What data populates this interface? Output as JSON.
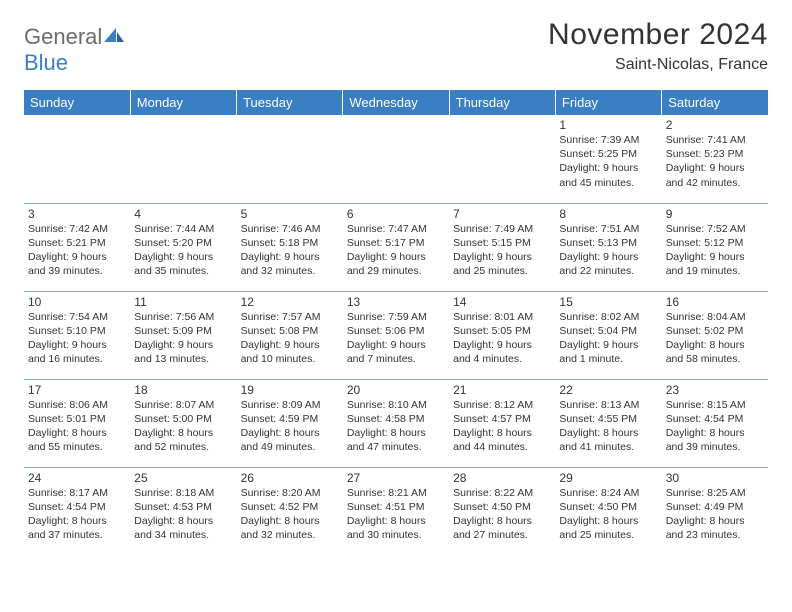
{
  "logo": {
    "word1": "General",
    "word2": "Blue"
  },
  "title": "November 2024",
  "location": "Saint-Nicolas, France",
  "colors": {
    "header_bg": "#3a7fc4",
    "header_text": "#ffffff",
    "cell_border": "#87a9cc",
    "text": "#333333",
    "logo_gray": "#6b6b6b",
    "logo_blue": "#3a7fc4",
    "page_bg": "#ffffff"
  },
  "columns": [
    "Sunday",
    "Monday",
    "Tuesday",
    "Wednesday",
    "Thursday",
    "Friday",
    "Saturday"
  ],
  "rows": [
    [
      null,
      null,
      null,
      null,
      null,
      {
        "n": "1",
        "sr": "7:39 AM",
        "ss": "5:25 PM",
        "dl": "9 hours and 45 minutes."
      },
      {
        "n": "2",
        "sr": "7:41 AM",
        "ss": "5:23 PM",
        "dl": "9 hours and 42 minutes."
      }
    ],
    [
      {
        "n": "3",
        "sr": "7:42 AM",
        "ss": "5:21 PM",
        "dl": "9 hours and 39 minutes."
      },
      {
        "n": "4",
        "sr": "7:44 AM",
        "ss": "5:20 PM",
        "dl": "9 hours and 35 minutes."
      },
      {
        "n": "5",
        "sr": "7:46 AM",
        "ss": "5:18 PM",
        "dl": "9 hours and 32 minutes."
      },
      {
        "n": "6",
        "sr": "7:47 AM",
        "ss": "5:17 PM",
        "dl": "9 hours and 29 minutes."
      },
      {
        "n": "7",
        "sr": "7:49 AM",
        "ss": "5:15 PM",
        "dl": "9 hours and 25 minutes."
      },
      {
        "n": "8",
        "sr": "7:51 AM",
        "ss": "5:13 PM",
        "dl": "9 hours and 22 minutes."
      },
      {
        "n": "9",
        "sr": "7:52 AM",
        "ss": "5:12 PM",
        "dl": "9 hours and 19 minutes."
      }
    ],
    [
      {
        "n": "10",
        "sr": "7:54 AM",
        "ss": "5:10 PM",
        "dl": "9 hours and 16 minutes."
      },
      {
        "n": "11",
        "sr": "7:56 AM",
        "ss": "5:09 PM",
        "dl": "9 hours and 13 minutes."
      },
      {
        "n": "12",
        "sr": "7:57 AM",
        "ss": "5:08 PM",
        "dl": "9 hours and 10 minutes."
      },
      {
        "n": "13",
        "sr": "7:59 AM",
        "ss": "5:06 PM",
        "dl": "9 hours and 7 minutes."
      },
      {
        "n": "14",
        "sr": "8:01 AM",
        "ss": "5:05 PM",
        "dl": "9 hours and 4 minutes."
      },
      {
        "n": "15",
        "sr": "8:02 AM",
        "ss": "5:04 PM",
        "dl": "9 hours and 1 minute."
      },
      {
        "n": "16",
        "sr": "8:04 AM",
        "ss": "5:02 PM",
        "dl": "8 hours and 58 minutes."
      }
    ],
    [
      {
        "n": "17",
        "sr": "8:06 AM",
        "ss": "5:01 PM",
        "dl": "8 hours and 55 minutes."
      },
      {
        "n": "18",
        "sr": "8:07 AM",
        "ss": "5:00 PM",
        "dl": "8 hours and 52 minutes."
      },
      {
        "n": "19",
        "sr": "8:09 AM",
        "ss": "4:59 PM",
        "dl": "8 hours and 49 minutes."
      },
      {
        "n": "20",
        "sr": "8:10 AM",
        "ss": "4:58 PM",
        "dl": "8 hours and 47 minutes."
      },
      {
        "n": "21",
        "sr": "8:12 AM",
        "ss": "4:57 PM",
        "dl": "8 hours and 44 minutes."
      },
      {
        "n": "22",
        "sr": "8:13 AM",
        "ss": "4:55 PM",
        "dl": "8 hours and 41 minutes."
      },
      {
        "n": "23",
        "sr": "8:15 AM",
        "ss": "4:54 PM",
        "dl": "8 hours and 39 minutes."
      }
    ],
    [
      {
        "n": "24",
        "sr": "8:17 AM",
        "ss": "4:54 PM",
        "dl": "8 hours and 37 minutes."
      },
      {
        "n": "25",
        "sr": "8:18 AM",
        "ss": "4:53 PM",
        "dl": "8 hours and 34 minutes."
      },
      {
        "n": "26",
        "sr": "8:20 AM",
        "ss": "4:52 PM",
        "dl": "8 hours and 32 minutes."
      },
      {
        "n": "27",
        "sr": "8:21 AM",
        "ss": "4:51 PM",
        "dl": "8 hours and 30 minutes."
      },
      {
        "n": "28",
        "sr": "8:22 AM",
        "ss": "4:50 PM",
        "dl": "8 hours and 27 minutes."
      },
      {
        "n": "29",
        "sr": "8:24 AM",
        "ss": "4:50 PM",
        "dl": "8 hours and 25 minutes."
      },
      {
        "n": "30",
        "sr": "8:25 AM",
        "ss": "4:49 PM",
        "dl": "8 hours and 23 minutes."
      }
    ]
  ],
  "labels": {
    "sunrise": "Sunrise:",
    "sunset": "Sunset:",
    "daylight": "Daylight:"
  }
}
